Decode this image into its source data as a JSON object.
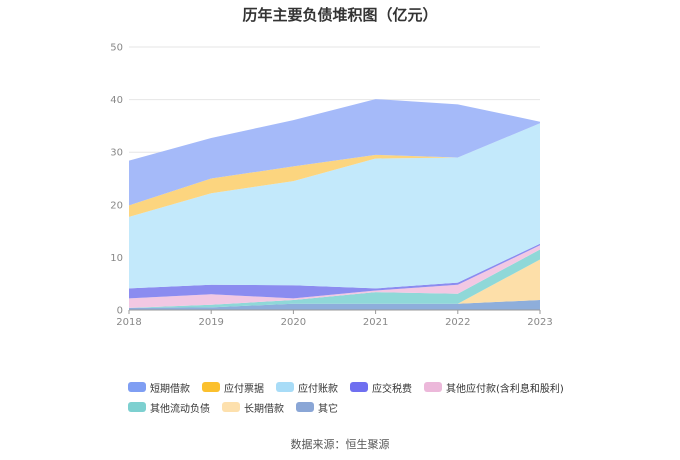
{
  "chart_data": {
    "type": "area",
    "stacked": true,
    "title": "历年主要负债堆积图（亿元）",
    "categories": [
      "2018",
      "2019",
      "2020",
      "2021",
      "2022",
      "2023"
    ],
    "ylim": [
      0,
      50
    ],
    "yticks": [
      "0",
      "10",
      "20",
      "30",
      "40",
      "50"
    ],
    "grid": true,
    "legend_position": "bottom",
    "series": [
      {
        "name": "其它",
        "color": "#8eaedb",
        "values": [
          0.4,
          0.5,
          1.2,
          1.2,
          1.2,
          1.9
        ]
      },
      {
        "name": "长期借款",
        "color": "#fddfa9",
        "values": [
          0.0,
          0.0,
          0.0,
          0.0,
          0.0,
          7.7
        ]
      },
      {
        "name": "其他流动负债",
        "color": "#8fd8d8",
        "values": [
          0.0,
          0.5,
          0.7,
          2.2,
          1.9,
          1.9
        ]
      },
      {
        "name": "其他应付款(含利息和股利)",
        "color": "#f2c8e3",
        "values": [
          1.8,
          2.0,
          0.3,
          0.3,
          1.7,
          0.8
        ]
      },
      {
        "name": "应交税费",
        "color": "#8b8cf0",
        "values": [
          1.9,
          1.8,
          2.5,
          0.4,
          0.4,
          0.3
        ]
      },
      {
        "name": "应付账款",
        "color": "#c3e9fb",
        "values": [
          13.6,
          17.4,
          19.8,
          24.7,
          23.8,
          22.9
        ]
      },
      {
        "name": "应付票据",
        "color": "#fcd57f",
        "values": [
          2.2,
          2.8,
          2.8,
          0.7,
          0.0,
          0.0
        ]
      },
      {
        "name": "短期借款",
        "color": "#a5baf9",
        "values": [
          8.5,
          7.7,
          8.8,
          10.6,
          10.1,
          0.3
        ]
      }
    ]
  },
  "legend": [
    {
      "label": "短期借款",
      "color": "#7f9ef3"
    },
    {
      "label": "应付票据",
      "color": "#fbc02d"
    },
    {
      "label": "应付账款",
      "color": "#a8dcf7"
    },
    {
      "label": "应交税费",
      "color": "#6f6ff0"
    },
    {
      "label": "其他应付款(含利息和股利)",
      "color": "#ecb8da"
    },
    {
      "label": "其他流动负债",
      "color": "#7dd0d0"
    },
    {
      "label": "长期借款",
      "color": "#fde0ad"
    },
    {
      "label": "其它",
      "color": "#8aa6d6"
    }
  ],
  "source": "数据来源：恒生聚源"
}
